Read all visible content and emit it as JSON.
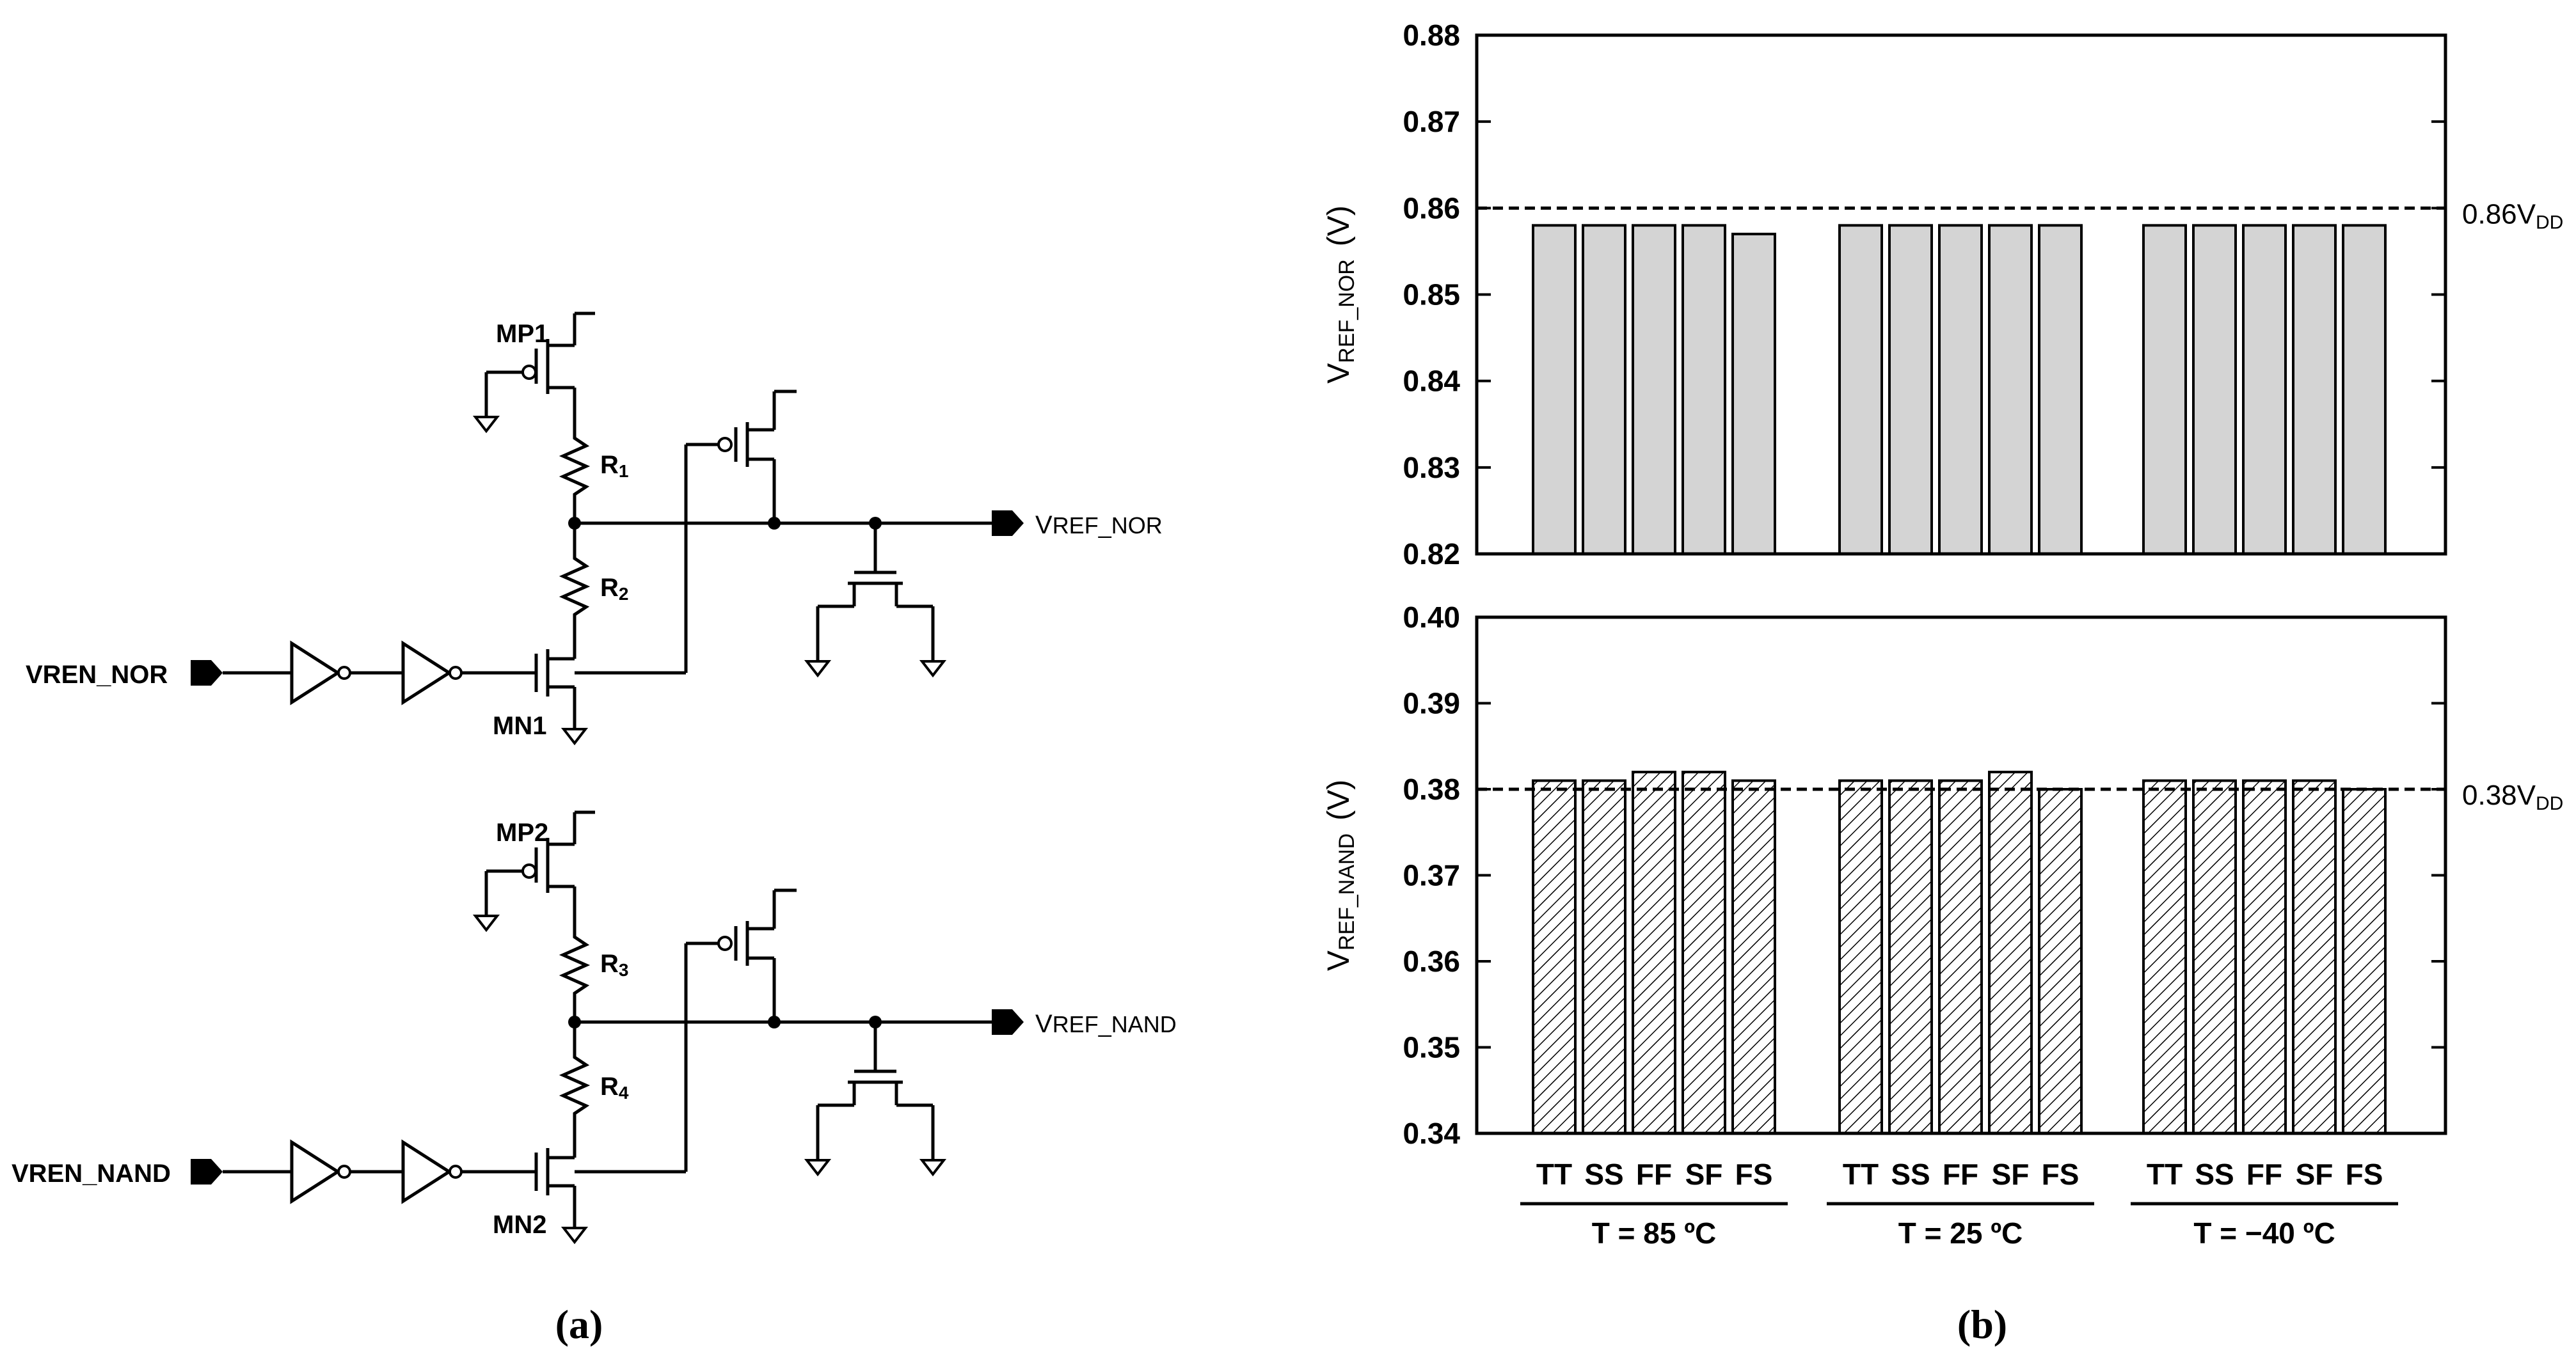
{
  "colors": {
    "nor_bar_fill": "#d4d4d4",
    "nand_hatch": "#000000",
    "axis": "#000000"
  },
  "schematic": {
    "caption": "(a)",
    "nor": {
      "input": "VREN_NOR",
      "output_main": "V",
      "output_sub": "REF_NOR",
      "pmos": "MP1",
      "nmos": "MN1",
      "r_top_main": "R",
      "r_top_sub": "1",
      "r_bot_main": "R",
      "r_bot_sub": "2"
    },
    "nand": {
      "input": "VREN_NAND",
      "output_main": "V",
      "output_sub": "REF_NAND",
      "pmos": "MP2",
      "nmos": "MN2",
      "r_top_main": "R",
      "r_top_sub": "3",
      "r_bot_main": "R",
      "r_bot_sub": "4"
    }
  },
  "chart_caption": "(b)",
  "chart_data": [
    {
      "type": "bar",
      "panel": "top",
      "ylabel_main": "V",
      "ylabel_sub": "REF_NOR",
      "ylabel_unit": "(V)",
      "ylim": [
        0.82,
        0.88
      ],
      "yticks": [
        "0.88",
        "0.87",
        "0.86",
        "0.85",
        "0.84",
        "0.83",
        "0.82"
      ],
      "ytick_values": [
        0.88,
        0.87,
        0.86,
        0.85,
        0.84,
        0.83,
        0.82
      ],
      "reference": {
        "value": 0.86,
        "label_main": "0.86V",
        "label_sub": "DD",
        "style": "dashed"
      },
      "fill": "solid-gray",
      "groups": [
        {
          "label": "T = 85 ºC",
          "categories": [
            "TT",
            "SS",
            "FF",
            "SF",
            "FS"
          ],
          "values": [
            0.858,
            0.858,
            0.858,
            0.858,
            0.857
          ]
        },
        {
          "label": "T = 25 ºC",
          "categories": [
            "TT",
            "SS",
            "FF",
            "SF",
            "FS"
          ],
          "values": [
            0.858,
            0.858,
            0.858,
            0.858,
            0.858
          ]
        },
        {
          "label": "T = −40 ºC",
          "categories": [
            "TT",
            "SS",
            "FF",
            "SF",
            "FS"
          ],
          "values": [
            0.858,
            0.858,
            0.858,
            0.858,
            0.858
          ]
        }
      ]
    },
    {
      "type": "bar",
      "panel": "bottom",
      "ylabel_main": "V",
      "ylabel_sub": "REF_NAND",
      "ylabel_unit": "(V)",
      "ylim": [
        0.34,
        0.4
      ],
      "yticks": [
        "0.40",
        "0.39",
        "0.38",
        "0.37",
        "0.36",
        "0.35",
        "0.34"
      ],
      "ytick_values": [
        0.4,
        0.39,
        0.38,
        0.37,
        0.36,
        0.35,
        0.34
      ],
      "reference": {
        "value": 0.38,
        "label_main": "0.38V",
        "label_sub": "DD",
        "style": "dashed"
      },
      "fill": "hatched",
      "groups": [
        {
          "label": "T = 85 ºC",
          "categories": [
            "TT",
            "SS",
            "FF",
            "SF",
            "FS"
          ],
          "values": [
            0.381,
            0.381,
            0.382,
            0.382,
            0.381
          ]
        },
        {
          "label": "T = 25 ºC",
          "categories": [
            "TT",
            "SS",
            "FF",
            "SF",
            "FS"
          ],
          "values": [
            0.381,
            0.381,
            0.381,
            0.382,
            0.38
          ]
        },
        {
          "label": "T = −40 ºC",
          "categories": [
            "TT",
            "SS",
            "FF",
            "SF",
            "FS"
          ],
          "values": [
            0.381,
            0.381,
            0.381,
            0.381,
            0.38
          ]
        }
      ]
    }
  ]
}
